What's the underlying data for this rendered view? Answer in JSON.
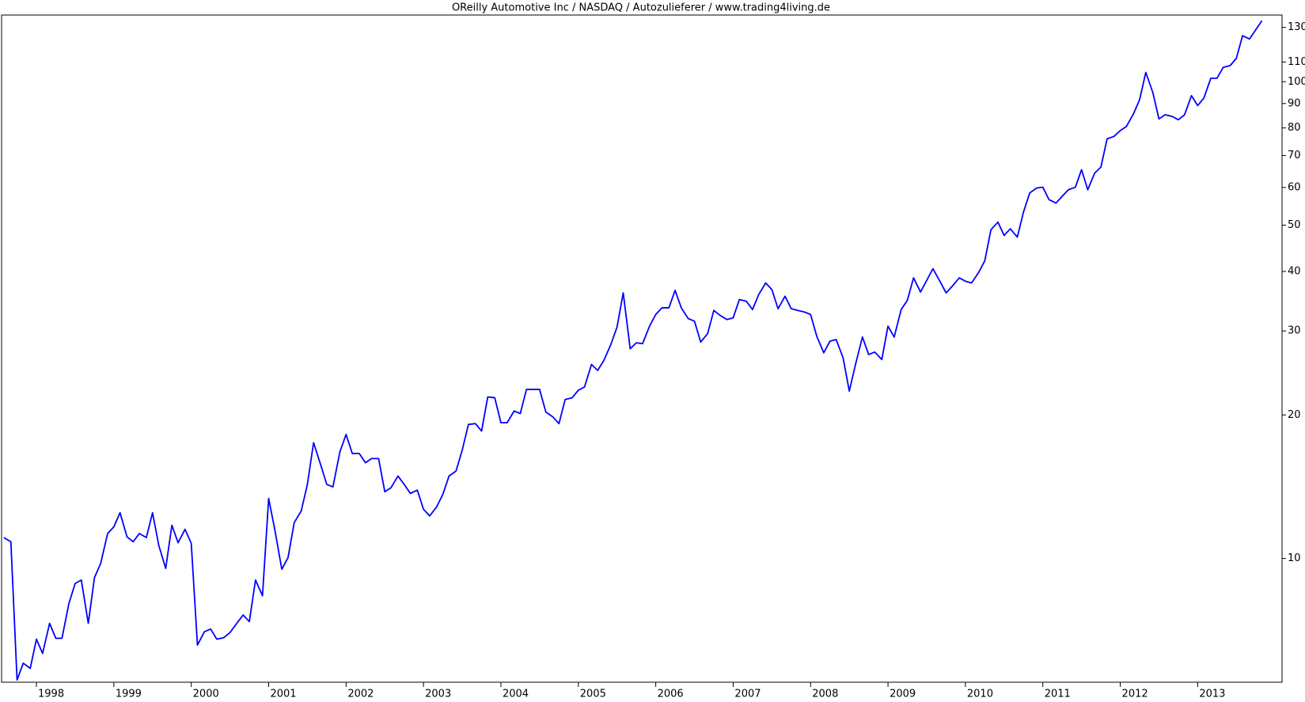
{
  "chart_data": {
    "type": "line",
    "title": "OReilly Automotive Inc / NASDAQ / Autozulieferer / www.trading4living.de",
    "log_y": true,
    "color": "#0000ff",
    "xlim": [
      1997.55,
      2014.09
    ],
    "xticks": [
      1998,
      1999,
      2000,
      2001,
      2002,
      2003,
      2004,
      2005,
      2006,
      2007,
      2008,
      2009,
      2010,
      2011,
      2012,
      2013
    ],
    "ylim": [
      5.5,
      138
    ],
    "yticks": [
      10,
      20,
      30,
      40,
      50,
      60,
      70,
      80,
      90,
      100,
      110,
      130
    ],
    "x": [
      1997.58,
      1997.67,
      1997.75,
      1997.83,
      1997.92,
      1998.0,
      1998.08,
      1998.17,
      1998.25,
      1998.33,
      1998.42,
      1998.5,
      1998.58,
      1998.67,
      1998.75,
      1998.83,
      1998.92,
      1999.0,
      1999.08,
      1999.17,
      1999.25,
      1999.33,
      1999.42,
      1999.5,
      1999.58,
      1999.67,
      1999.75,
      1999.83,
      1999.92,
      2000.0,
      2000.08,
      2000.17,
      2000.25,
      2000.33,
      2000.42,
      2000.5,
      2000.58,
      2000.67,
      2000.75,
      2000.83,
      2000.92,
      2001.0,
      2001.08,
      2001.17,
      2001.25,
      2001.33,
      2001.42,
      2001.5,
      2001.58,
      2001.67,
      2001.75,
      2001.83,
      2001.92,
      2002.0,
      2002.08,
      2002.17,
      2002.25,
      2002.33,
      2002.42,
      2002.5,
      2002.58,
      2002.67,
      2002.75,
      2002.83,
      2002.92,
      2003.0,
      2003.08,
      2003.17,
      2003.25,
      2003.33,
      2003.42,
      2003.5,
      2003.58,
      2003.67,
      2003.75,
      2003.83,
      2003.92,
      2004.0,
      2004.08,
      2004.17,
      2004.25,
      2004.33,
      2004.42,
      2004.5,
      2004.58,
      2004.67,
      2004.75,
      2004.83,
      2004.92,
      2005.0,
      2005.08,
      2005.17,
      2005.25,
      2005.33,
      2005.42,
      2005.5,
      2005.58,
      2005.67,
      2005.75,
      2005.83,
      2005.92,
      2006.0,
      2006.08,
      2006.17,
      2006.25,
      2006.33,
      2006.42,
      2006.5,
      2006.58,
      2006.67,
      2006.75,
      2006.83,
      2006.92,
      2007.0,
      2007.08,
      2007.17,
      2007.25,
      2007.33,
      2007.42,
      2007.5,
      2007.58,
      2007.67,
      2007.75,
      2007.83,
      2007.92,
      2008.0,
      2008.08,
      2008.17,
      2008.25,
      2008.33,
      2008.42,
      2008.5,
      2008.58,
      2008.67,
      2008.75,
      2008.83,
      2008.92,
      2009.0,
      2009.08,
      2009.17,
      2009.25,
      2009.33,
      2009.42,
      2009.5,
      2009.58,
      2009.67,
      2009.75,
      2009.83,
      2009.92,
      2010.0,
      2010.08,
      2010.17,
      2010.25,
      2010.33,
      2010.42,
      2010.5,
      2010.58,
      2010.67,
      2010.75,
      2010.83,
      2010.92,
      2011.0,
      2011.08,
      2011.17,
      2011.25,
      2011.33,
      2011.42,
      2011.5,
      2011.58,
      2011.67,
      2011.75,
      2011.83,
      2011.92,
      2012.0,
      2012.08,
      2012.17,
      2012.25,
      2012.33,
      2012.42,
      2012.5,
      2012.58,
      2012.67,
      2012.75,
      2012.83,
      2012.92,
      2013.0,
      2013.08,
      2013.17,
      2013.25,
      2013.33,
      2013.42,
      2013.5,
      2013.58,
      2013.67,
      2013.75,
      2013.83
    ],
    "values": [
      11.06,
      10.84,
      5.56,
      6.03,
      5.88,
      6.77,
      6.32,
      7.31,
      6.8,
      6.8,
      8.05,
      8.86,
      9.01,
      7.31,
      9.12,
      9.76,
      11.28,
      11.65,
      12.47,
      11.1,
      10.84,
      11.28,
      11.06,
      12.47,
      10.66,
      9.53,
      11.74,
      10.79,
      11.51,
      10.75,
      6.58,
      7.02,
      7.11,
      6.77,
      6.82,
      6.99,
      7.28,
      7.61,
      7.37,
      9.01,
      8.35,
      13.36,
      11.47,
      9.49,
      10.04,
      11.89,
      12.57,
      14.3,
      17.49,
      15.75,
      14.3,
      14.13,
      16.73,
      18.2,
      16.6,
      16.6,
      15.88,
      16.2,
      16.2,
      13.8,
      14.07,
      14.89,
      14.3,
      13.69,
      13.91,
      12.68,
      12.28,
      12.83,
      13.63,
      14.89,
      15.25,
      16.87,
      19.1,
      19.18,
      18.5,
      21.82,
      21.73,
      19.26,
      19.26,
      20.38,
      20.13,
      22.62,
      22.62,
      22.62,
      20.29,
      19.81,
      19.18,
      21.55,
      21.73,
      22.53,
      22.89,
      25.52,
      24.8,
      26.03,
      28.11,
      30.58,
      36.06,
      27.54,
      28.34,
      28.22,
      30.71,
      32.49,
      33.55,
      33.55,
      36.5,
      33.55,
      31.85,
      31.46,
      28.44,
      29.62,
      33.14,
      32.35,
      31.71,
      31.97,
      34.92,
      34.64,
      33.27,
      35.77,
      37.84,
      36.64,
      33.41,
      35.48,
      33.41,
      33.14,
      32.88,
      32.49,
      29.25,
      27.0,
      28.56,
      28.79,
      26.35,
      22.44,
      25.52,
      29.14,
      26.78,
      27.1,
      26.14,
      30.71,
      29.14,
      33.27,
      34.78,
      38.78,
      36.22,
      38.31,
      40.53,
      38.15,
      36.06,
      37.24,
      38.78,
      38.15,
      37.84,
      39.79,
      42.1,
      48.94,
      50.75,
      47.59,
      49.15,
      47.21,
      53.26,
      58.43,
      59.84,
      60.08,
      56.56,
      55.66,
      57.5,
      59.35,
      60.08,
      65.38,
      59.35,
      64.34,
      66.18,
      75.86,
      76.79,
      78.98,
      80.58,
      85.58,
      91.65,
      104.6,
      95.02,
      83.56,
      85.24,
      84.56,
      83.21,
      85.24,
      93.5,
      89.11,
      92.4,
      101.7,
      101.7,
      107.2,
      108.1,
      112.0,
      124.9,
      122.9,
      128.5,
      134.3
    ]
  }
}
